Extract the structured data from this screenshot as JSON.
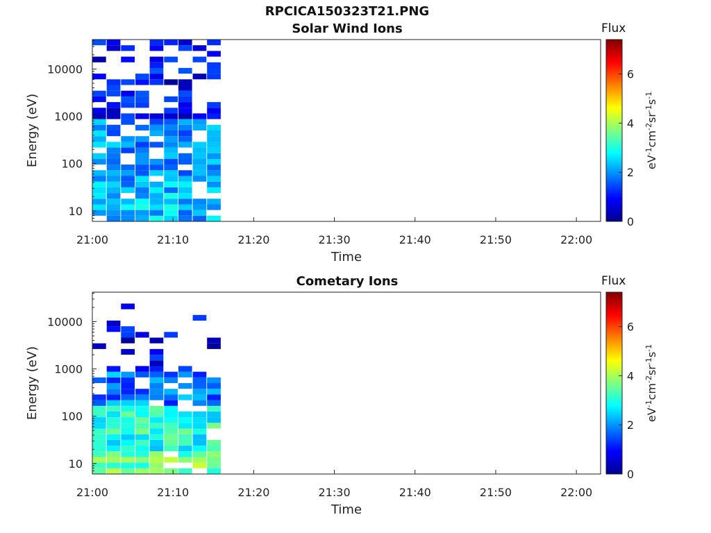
{
  "figure_title": "RPCICA150323T21.PNG",
  "colorbar": {
    "label": "Flux",
    "ticks": [
      "0",
      "2",
      "4",
      "6"
    ],
    "max": 7.4
  },
  "chart_data": [
    {
      "type": "heatmap",
      "title": "Solar Wind Ions",
      "xlabel": "Time",
      "ylabel": "Energy (eV)",
      "y_scale": "log",
      "xlim": [
        "21:00",
        "22:03"
      ],
      "ylim": [
        6,
        42000
      ],
      "xticks": [
        "21:00",
        "21:10",
        "21:20",
        "21:30",
        "21:40",
        "21:50",
        "22:00"
      ],
      "yticks": [
        "10",
        "100",
        "1000",
        "10000"
      ],
      "data_end": "21:16",
      "max_flux": 3.2
    },
    {
      "type": "heatmap",
      "title": "Cometary Ions",
      "xlabel": "Time",
      "ylabel": "Energy (eV)",
      "y_scale": "log",
      "xlim": [
        "21:00",
        "22:03"
      ],
      "ylim": [
        6,
        42000
      ],
      "xticks": [
        "21:00",
        "21:10",
        "21:20",
        "21:30",
        "21:40",
        "21:50",
        "22:00"
      ],
      "yticks": [
        "10",
        "100",
        "1000",
        "10000"
      ],
      "data_end": "21:16",
      "max_flux": 5.1
    }
  ]
}
